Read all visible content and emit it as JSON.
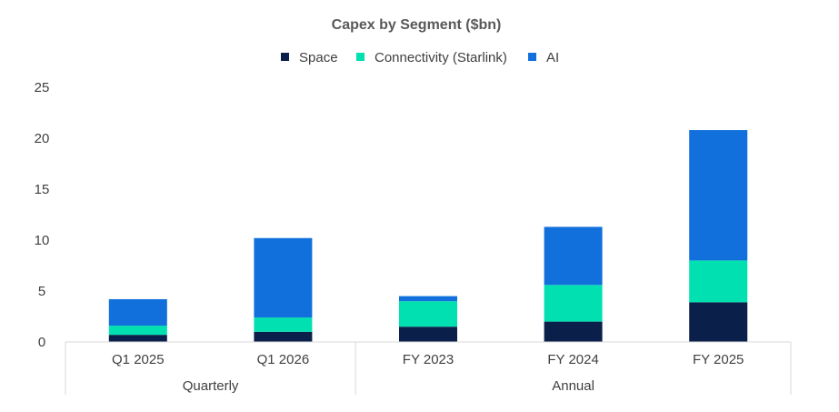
{
  "chart_data": {
    "type": "bar",
    "stacked": true,
    "title": "Capex by Segment ($bn)",
    "categories": [
      "Q1 2025",
      "Q1 2026",
      "FY 2023",
      "FY 2024",
      "FY 2025"
    ],
    "groups": [
      {
        "label": "Quarterly",
        "categories": [
          "Q1 2025",
          "Q1 2026"
        ]
      },
      {
        "label": "Annual",
        "categories": [
          "FY 2023",
          "FY 2024",
          "FY 2025"
        ]
      }
    ],
    "series": [
      {
        "name": "Space",
        "color": "#0b1f4b",
        "values": [
          0.7,
          1.0,
          1.5,
          2.0,
          3.9
        ]
      },
      {
        "name": "Connectivity (Starlink)",
        "color": "#00e0b0",
        "values": [
          0.9,
          1.4,
          2.5,
          3.6,
          4.1
        ]
      },
      {
        "name": "AI",
        "color": "#1170dc",
        "values": [
          2.6,
          7.8,
          0.5,
          5.7,
          12.8
        ]
      }
    ],
    "ylim": [
      0,
      25
    ],
    "yticks": [
      0,
      5,
      10,
      15,
      20,
      25
    ],
    "grid": false,
    "legend_position": "top"
  }
}
